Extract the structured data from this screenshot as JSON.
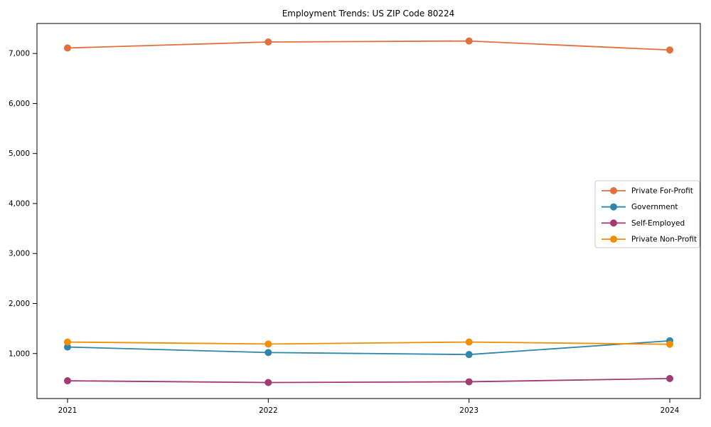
{
  "chart_data": {
    "type": "line",
    "title": "Employment Trends: US ZIP Code 80224",
    "x": [
      "2021",
      "2022",
      "2023",
      "2024"
    ],
    "series": [
      {
        "name": "Private For-Profit",
        "color": "#E2703C",
        "values": [
          7110,
          7230,
          7250,
          7070
        ]
      },
      {
        "name": "Government",
        "color": "#2E86AB",
        "values": [
          1130,
          1020,
          980,
          1255
        ]
      },
      {
        "name": "Self-Employed",
        "color": "#A23B72",
        "values": [
          455,
          420,
          435,
          500
        ]
      },
      {
        "name": "Private Non-Profit",
        "color": "#F18F01",
        "values": [
          1230,
          1190,
          1230,
          1185
        ]
      }
    ],
    "xlabel": "",
    "ylabel": "",
    "ylim": [
      100,
      7600
    ],
    "yticks": [
      1000,
      2000,
      3000,
      4000,
      5000,
      6000,
      7000
    ],
    "grid": false,
    "legend_position": "center-right",
    "legend_border_color": "#cccccc",
    "spine_color": "#000000",
    "background_color": "#ffffff"
  }
}
